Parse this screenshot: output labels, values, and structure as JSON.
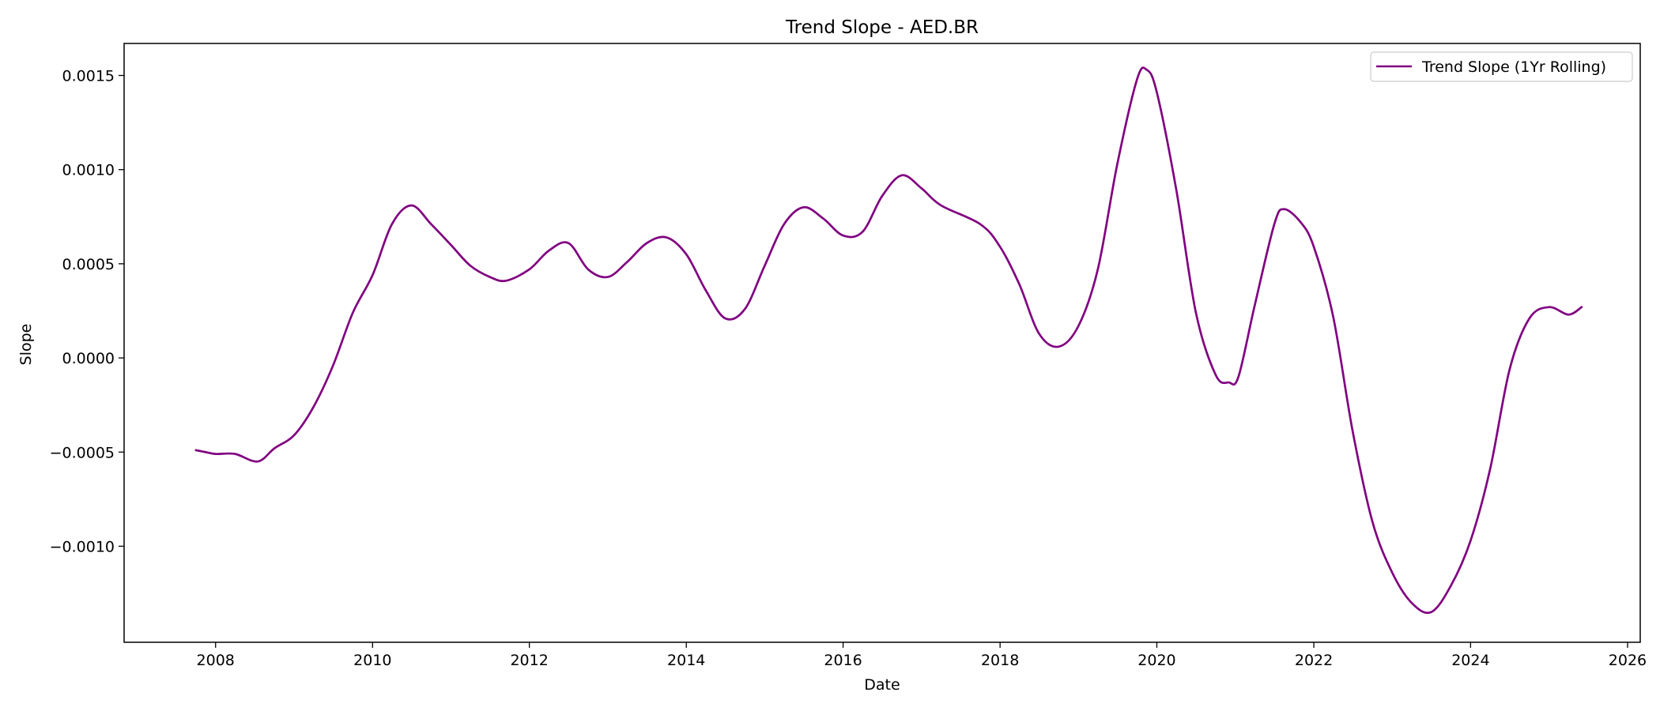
{
  "chart_data": {
    "type": "line",
    "title": "Trend Slope - AED.BR",
    "xlabel": "Date",
    "ylabel": "Slope",
    "xlim": [
      "2006-11-01",
      "2026-03-01"
    ],
    "ylim": [
      -0.00151,
      0.00167
    ],
    "x_ticks": [
      "2008",
      "2010",
      "2012",
      "2014",
      "2016",
      "2018",
      "2020",
      "2022",
      "2024",
      "2026"
    ],
    "y_ticks": [
      {
        "value": 0.0015,
        "label": "0.0015"
      },
      {
        "value": 0.001,
        "label": "0.0010"
      },
      {
        "value": 0.0005,
        "label": "0.0005"
      },
      {
        "value": 0.0,
        "label": "0.0000"
      },
      {
        "value": -0.0005,
        "label": "−0.0005"
      },
      {
        "value": -0.001,
        "label": "−0.0010"
      }
    ],
    "grid": false,
    "legend": {
      "placement": "top-right",
      "entries": [
        "Trend Slope (1Yr Rolling)"
      ]
    },
    "series": [
      {
        "name": "Trend Slope (1Yr Rolling)",
        "color": "#800080",
        "points": [
          [
            "2007-10-01",
            -0.00049
          ],
          [
            "2007-11-15",
            -0.0005
          ],
          [
            "2008-01-01",
            -0.00051
          ],
          [
            "2008-04-01",
            -0.00051
          ],
          [
            "2008-07-15",
            -0.00055
          ],
          [
            "2008-10-01",
            -0.00048
          ],
          [
            "2009-01-01",
            -0.00041
          ],
          [
            "2009-04-01",
            -0.00026
          ],
          [
            "2009-07-01",
            -4e-05
          ],
          [
            "2009-10-01",
            0.00024
          ],
          [
            "2010-01-01",
            0.00044
          ],
          [
            "2010-04-01",
            0.00071
          ],
          [
            "2010-07-01",
            0.00081
          ],
          [
            "2010-10-01",
            0.00071
          ],
          [
            "2011-01-01",
            0.0006
          ],
          [
            "2011-04-01",
            0.00049
          ],
          [
            "2011-07-01",
            0.00043
          ],
          [
            "2011-09-15",
            0.00041
          ],
          [
            "2012-01-01",
            0.00047
          ],
          [
            "2012-04-01",
            0.00057
          ],
          [
            "2012-07-01",
            0.00061
          ],
          [
            "2012-10-01",
            0.00047
          ],
          [
            "2013-01-01",
            0.00043
          ],
          [
            "2013-04-01",
            0.00051
          ],
          [
            "2013-07-01",
            0.00061
          ],
          [
            "2013-10-01",
            0.00064
          ],
          [
            "2014-01-01",
            0.00055
          ],
          [
            "2014-04-01",
            0.00036
          ],
          [
            "2014-07-01",
            0.00021
          ],
          [
            "2014-10-01",
            0.00026
          ],
          [
            "2015-01-01",
            0.00049
          ],
          [
            "2015-04-01",
            0.00071
          ],
          [
            "2015-07-01",
            0.0008
          ],
          [
            "2015-10-01",
            0.00074
          ],
          [
            "2016-01-01",
            0.00065
          ],
          [
            "2016-04-01",
            0.00067
          ],
          [
            "2016-07-01",
            0.00086
          ],
          [
            "2016-10-01",
            0.00097
          ],
          [
            "2017-01-01",
            0.0009
          ],
          [
            "2017-04-01",
            0.00081
          ],
          [
            "2017-10-01",
            0.00071
          ],
          [
            "2018-01-01",
            0.00059
          ],
          [
            "2018-04-01",
            0.00039
          ],
          [
            "2018-07-01",
            0.00013
          ],
          [
            "2018-10-01",
            6e-05
          ],
          [
            "2019-01-01",
            0.00017
          ],
          [
            "2019-04-01",
            0.00047
          ],
          [
            "2019-07-01",
            0.00103
          ],
          [
            "2019-10-01",
            0.00148
          ],
          [
            "2019-11-15",
            0.00153
          ],
          [
            "2020-01-01",
            0.00141
          ],
          [
            "2020-04-01",
            0.00089
          ],
          [
            "2020-07-01",
            0.00024
          ],
          [
            "2020-10-01",
            -9e-05
          ],
          [
            "2020-12-01",
            -0.00013
          ],
          [
            "2021-01-15",
            -0.0001
          ],
          [
            "2021-04-01",
            0.00028
          ],
          [
            "2021-07-01",
            0.00071
          ],
          [
            "2021-08-15",
            0.00079
          ],
          [
            "2021-11-01",
            0.00072
          ],
          [
            "2022-01-01",
            0.00059
          ],
          [
            "2022-04-01",
            0.00022
          ],
          [
            "2022-07-01",
            -0.00039
          ],
          [
            "2022-10-01",
            -0.00087
          ],
          [
            "2023-01-01",
            -0.00114
          ],
          [
            "2023-04-01",
            -0.0013
          ],
          [
            "2023-07-01",
            -0.00135
          ],
          [
            "2023-10-01",
            -0.00121
          ],
          [
            "2024-01-01",
            -0.00097
          ],
          [
            "2024-04-01",
            -0.00059
          ],
          [
            "2024-07-01",
            -6e-05
          ],
          [
            "2024-10-01",
            0.00021
          ],
          [
            "2025-01-01",
            0.00027
          ],
          [
            "2025-04-01",
            0.00023
          ],
          [
            "2025-06-01",
            0.00027
          ]
        ]
      }
    ]
  }
}
